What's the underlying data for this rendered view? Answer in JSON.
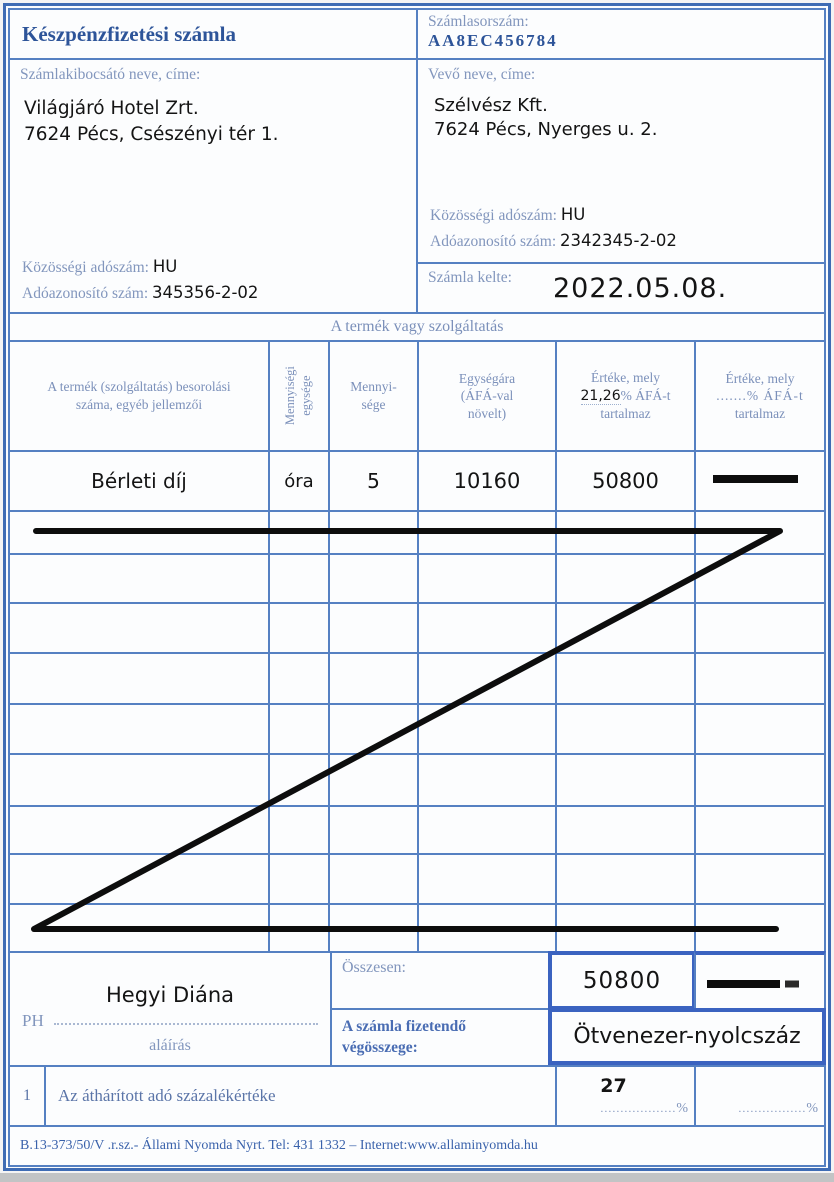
{
  "colors": {
    "border": "#5580c2",
    "bold_border": "#3b63c0",
    "label": "#8296bd",
    "dark_blue": "#2d5499",
    "ink": "#141414"
  },
  "header": {
    "title": "Készpénzfizetési számla",
    "serial_label": "Számlasorszám:",
    "serial_value": "AA8EC456784"
  },
  "issuer": {
    "label": "Számlakibocsátó neve, címe:",
    "name": "Világjáró Hotel Zrt.",
    "address": "7624 Pécs, Csészényi tér 1.",
    "community_vat_label": "Közösségi adószám:",
    "community_vat_value": "HU",
    "tax_number_label": "Adóazonosító szám:",
    "tax_number_value": "345356-2-02"
  },
  "buyer": {
    "label": "Vevő neve, címe:",
    "name": "Szélvész Kft.",
    "address": "7624 Pécs, Nyerges u. 2.",
    "community_vat_label": "Közösségi adószám:",
    "community_vat_value": "HU",
    "tax_number_label": "Adóazonosító szám:",
    "tax_number_value": "2342345-2-02"
  },
  "date": {
    "label": "Számla kelte:",
    "value": "2022.05.08."
  },
  "table": {
    "section_title": "A termék vagy szolgáltatás",
    "col1_header": "A termék (szolgáltatás) besorolási száma, egyéb jellemzői",
    "col2_header_line1": "Mennyiségi",
    "col2_header_line2": "egysége",
    "col3_header": "Mennyi- sége",
    "col4_header": "Egységára (ÁFÁ-val növelt)",
    "col5_header_line1": "Értéke, mely",
    "col5_vat_rate": "21,26",
    "col5_header_line2_suffix": "% ÁFÁ-t",
    "col5_header_line3": "tartalmaz",
    "col6_header_line1": "Értéke, mely",
    "col6_header_line2": ".......% ÁFÁ-t",
    "col6_header_line3": "tartalmaz",
    "row1": {
      "description": "Bérleti díj",
      "unit": "óra",
      "quantity": "5",
      "unit_price": "10160",
      "value_with_vat": "50800"
    }
  },
  "summary": {
    "total_label": "Összesen:",
    "total_value": "50800",
    "final_label_line1": "A számla fizetendő",
    "final_label_line2": "végösszege:",
    "final_value": "Ötvenezer-nyolcszáz"
  },
  "signature": {
    "ph_label": "PH",
    "name": "Hegyi Diána",
    "caption": "aláírás"
  },
  "vat_row": {
    "index": "1",
    "label": "Az áthárított adó százalékértéke",
    "rate_value": "27",
    "dots": "...................",
    "percent": "%",
    "dots2": ".................",
    "percent2": "%"
  },
  "footer": {
    "text": "B.13-373/50/V .r.sz.- Állami Nyomda Nyrt. Tel: 431 1332 – Internet:www.allaminyomda.hu"
  }
}
